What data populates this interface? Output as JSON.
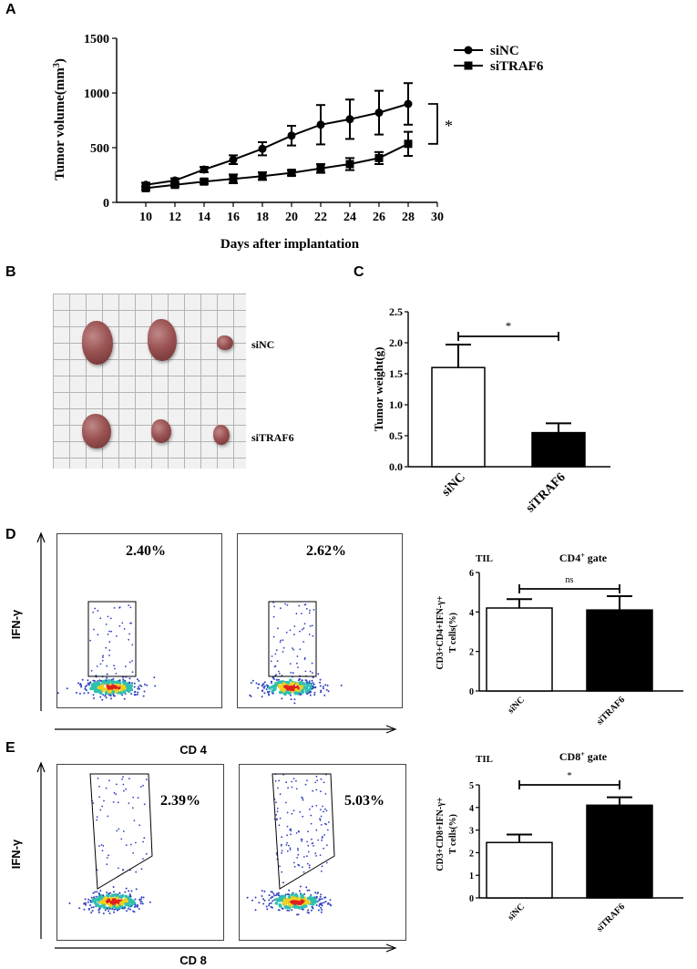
{
  "panels": {
    "a": "A",
    "b": "B",
    "c": "C",
    "d": "D",
    "e": "E"
  },
  "chart_data": [
    {
      "id": "A",
      "type": "line",
      "xlabel": "Days after implantation",
      "ylabel": "Tumor volume(mm",
      "ylabel_sup": "3",
      "ylabel_close": ")",
      "x": [
        10,
        12,
        14,
        16,
        18,
        20,
        22,
        24,
        26,
        28
      ],
      "xlim": [
        8,
        30
      ],
      "xticks": [
        10,
        12,
        14,
        16,
        18,
        20,
        22,
        24,
        26,
        28,
        30
      ],
      "ylim": [
        0,
        1500
      ],
      "yticks": [
        0,
        500,
        1000,
        1500
      ],
      "series": [
        {
          "name": "siNC",
          "marker": "circle",
          "values": [
            160,
            200,
            300,
            390,
            490,
            610,
            710,
            760,
            820,
            900
          ],
          "errors": [
            20,
            20,
            25,
            40,
            60,
            90,
            180,
            180,
            200,
            190
          ]
        },
        {
          "name": "siTRAF6",
          "marker": "square",
          "values": [
            130,
            160,
            190,
            215,
            240,
            270,
            310,
            350,
            405,
            535
          ],
          "errors": [
            15,
            15,
            20,
            40,
            35,
            25,
            40,
            55,
            55,
            110
          ]
        }
      ],
      "significance": "*"
    },
    {
      "id": "C",
      "type": "bar",
      "ylabel": "Tumor weight(g)",
      "categories": [
        "siNC",
        "siTRAF6"
      ],
      "values": [
        1.6,
        0.55
      ],
      "errors": [
        0.37,
        0.15
      ],
      "fills": [
        "#ffffff",
        "#000000"
      ],
      "ylim": [
        0,
        2.5
      ],
      "yticks": [
        "0.0",
        "0.5",
        "1.0",
        "1.5",
        "2.0",
        "2.5"
      ],
      "significance": "*"
    },
    {
      "id": "D",
      "type": "bar",
      "title": "CD4",
      "title_sup": "+",
      "title_rest": " gate",
      "corner_label": "TIL",
      "ylabel_line1": "CD3+CD4+IFN-γ+",
      "ylabel_line2": "T cells(%)",
      "categories": [
        "siNC",
        "siTRAF6"
      ],
      "values": [
        4.2,
        4.1
      ],
      "errors": [
        0.45,
        0.7
      ],
      "fills": [
        "#ffffff",
        "#000000"
      ],
      "ylim": [
        0,
        6
      ],
      "yticks": [
        "0",
        "2",
        "4",
        "6"
      ],
      "significance": "ns"
    },
    {
      "id": "E",
      "type": "bar",
      "title": "CD8",
      "title_sup": "+",
      "title_rest": " gate",
      "corner_label": "TIL",
      "ylabel_line1": "CD3+CD8+IFN-γ+",
      "ylabel_line2": "T cells(%)",
      "categories": [
        "siNC",
        "siTRAF6"
      ],
      "values": [
        2.45,
        4.1
      ],
      "errors": [
        0.35,
        0.35
      ],
      "fills": [
        "#ffffff",
        "#000000"
      ],
      "ylim": [
        0,
        5
      ],
      "yticks": [
        "0",
        "1",
        "2",
        "3",
        "4",
        "5"
      ],
      "significance": "*"
    }
  ],
  "photo": {
    "row1_label": "siNC",
    "row2_label": "siTRAF6"
  },
  "flow_d": {
    "y_axis": "IFN-γ",
    "x_axis": "CD 4",
    "plot1_pct": "2.40%",
    "plot2_pct": "2.62%"
  },
  "flow_e": {
    "y_axis": "IFN-γ",
    "x_axis": "CD 8",
    "plot1_pct": "2.39%",
    "plot2_pct": "5.03%"
  },
  "colors": {
    "dense": "#e02020",
    "mid": "#f0d020",
    "outer": "#30c0b0",
    "sparse": "#3040c0"
  }
}
